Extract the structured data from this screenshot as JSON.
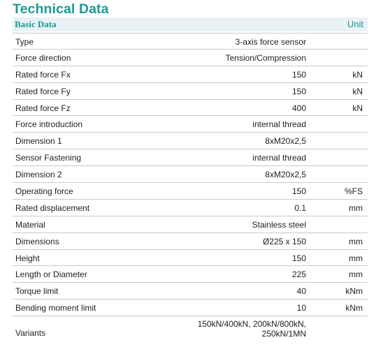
{
  "title": "Technical Data",
  "header": {
    "label": "Basic Data",
    "unit": "Unit"
  },
  "rows": [
    {
      "label": "Type",
      "value": "3-axis force sensor",
      "unit": ""
    },
    {
      "label": "Force direction",
      "value": "Tension/Compression",
      "unit": ""
    },
    {
      "label": "Rated force Fx",
      "value": "150",
      "unit": "kN"
    },
    {
      "label": "Rated force Fy",
      "value": "150",
      "unit": "kN"
    },
    {
      "label": "Rated force Fz",
      "value": "400",
      "unit": "kN"
    },
    {
      "label": "Force introduction",
      "value": "internal thread",
      "unit": ""
    },
    {
      "label": "Dimension 1",
      "value": "8xM20x2,5",
      "unit": ""
    },
    {
      "label": "Sensor Fastening",
      "value": "internal thread",
      "unit": ""
    },
    {
      "label": "Dimension 2",
      "value": "8xM20x2,5",
      "unit": ""
    },
    {
      "label": "Operating force",
      "value": "150",
      "unit": "%FS"
    },
    {
      "label": "Rated displacement",
      "value": "0.1",
      "unit": "mm"
    },
    {
      "label": "Material",
      "value": "Stainless steel",
      "unit": ""
    },
    {
      "label": "Dimensions",
      "value": "Ø225 x 150",
      "unit": "mm"
    },
    {
      "label": "Height",
      "value": "150",
      "unit": "mm"
    },
    {
      "label": "Length or Diameter",
      "value": "225",
      "unit": "mm"
    },
    {
      "label": "Torque limit",
      "value": "40",
      "unit": "kNm"
    },
    {
      "label": "Bending moment limit",
      "value": "10",
      "unit": "kNm"
    },
    {
      "label": "Variants",
      "value": "150kN/400kN, 200kN/800kN, 250kN/1MN",
      "unit": ""
    }
  ]
}
